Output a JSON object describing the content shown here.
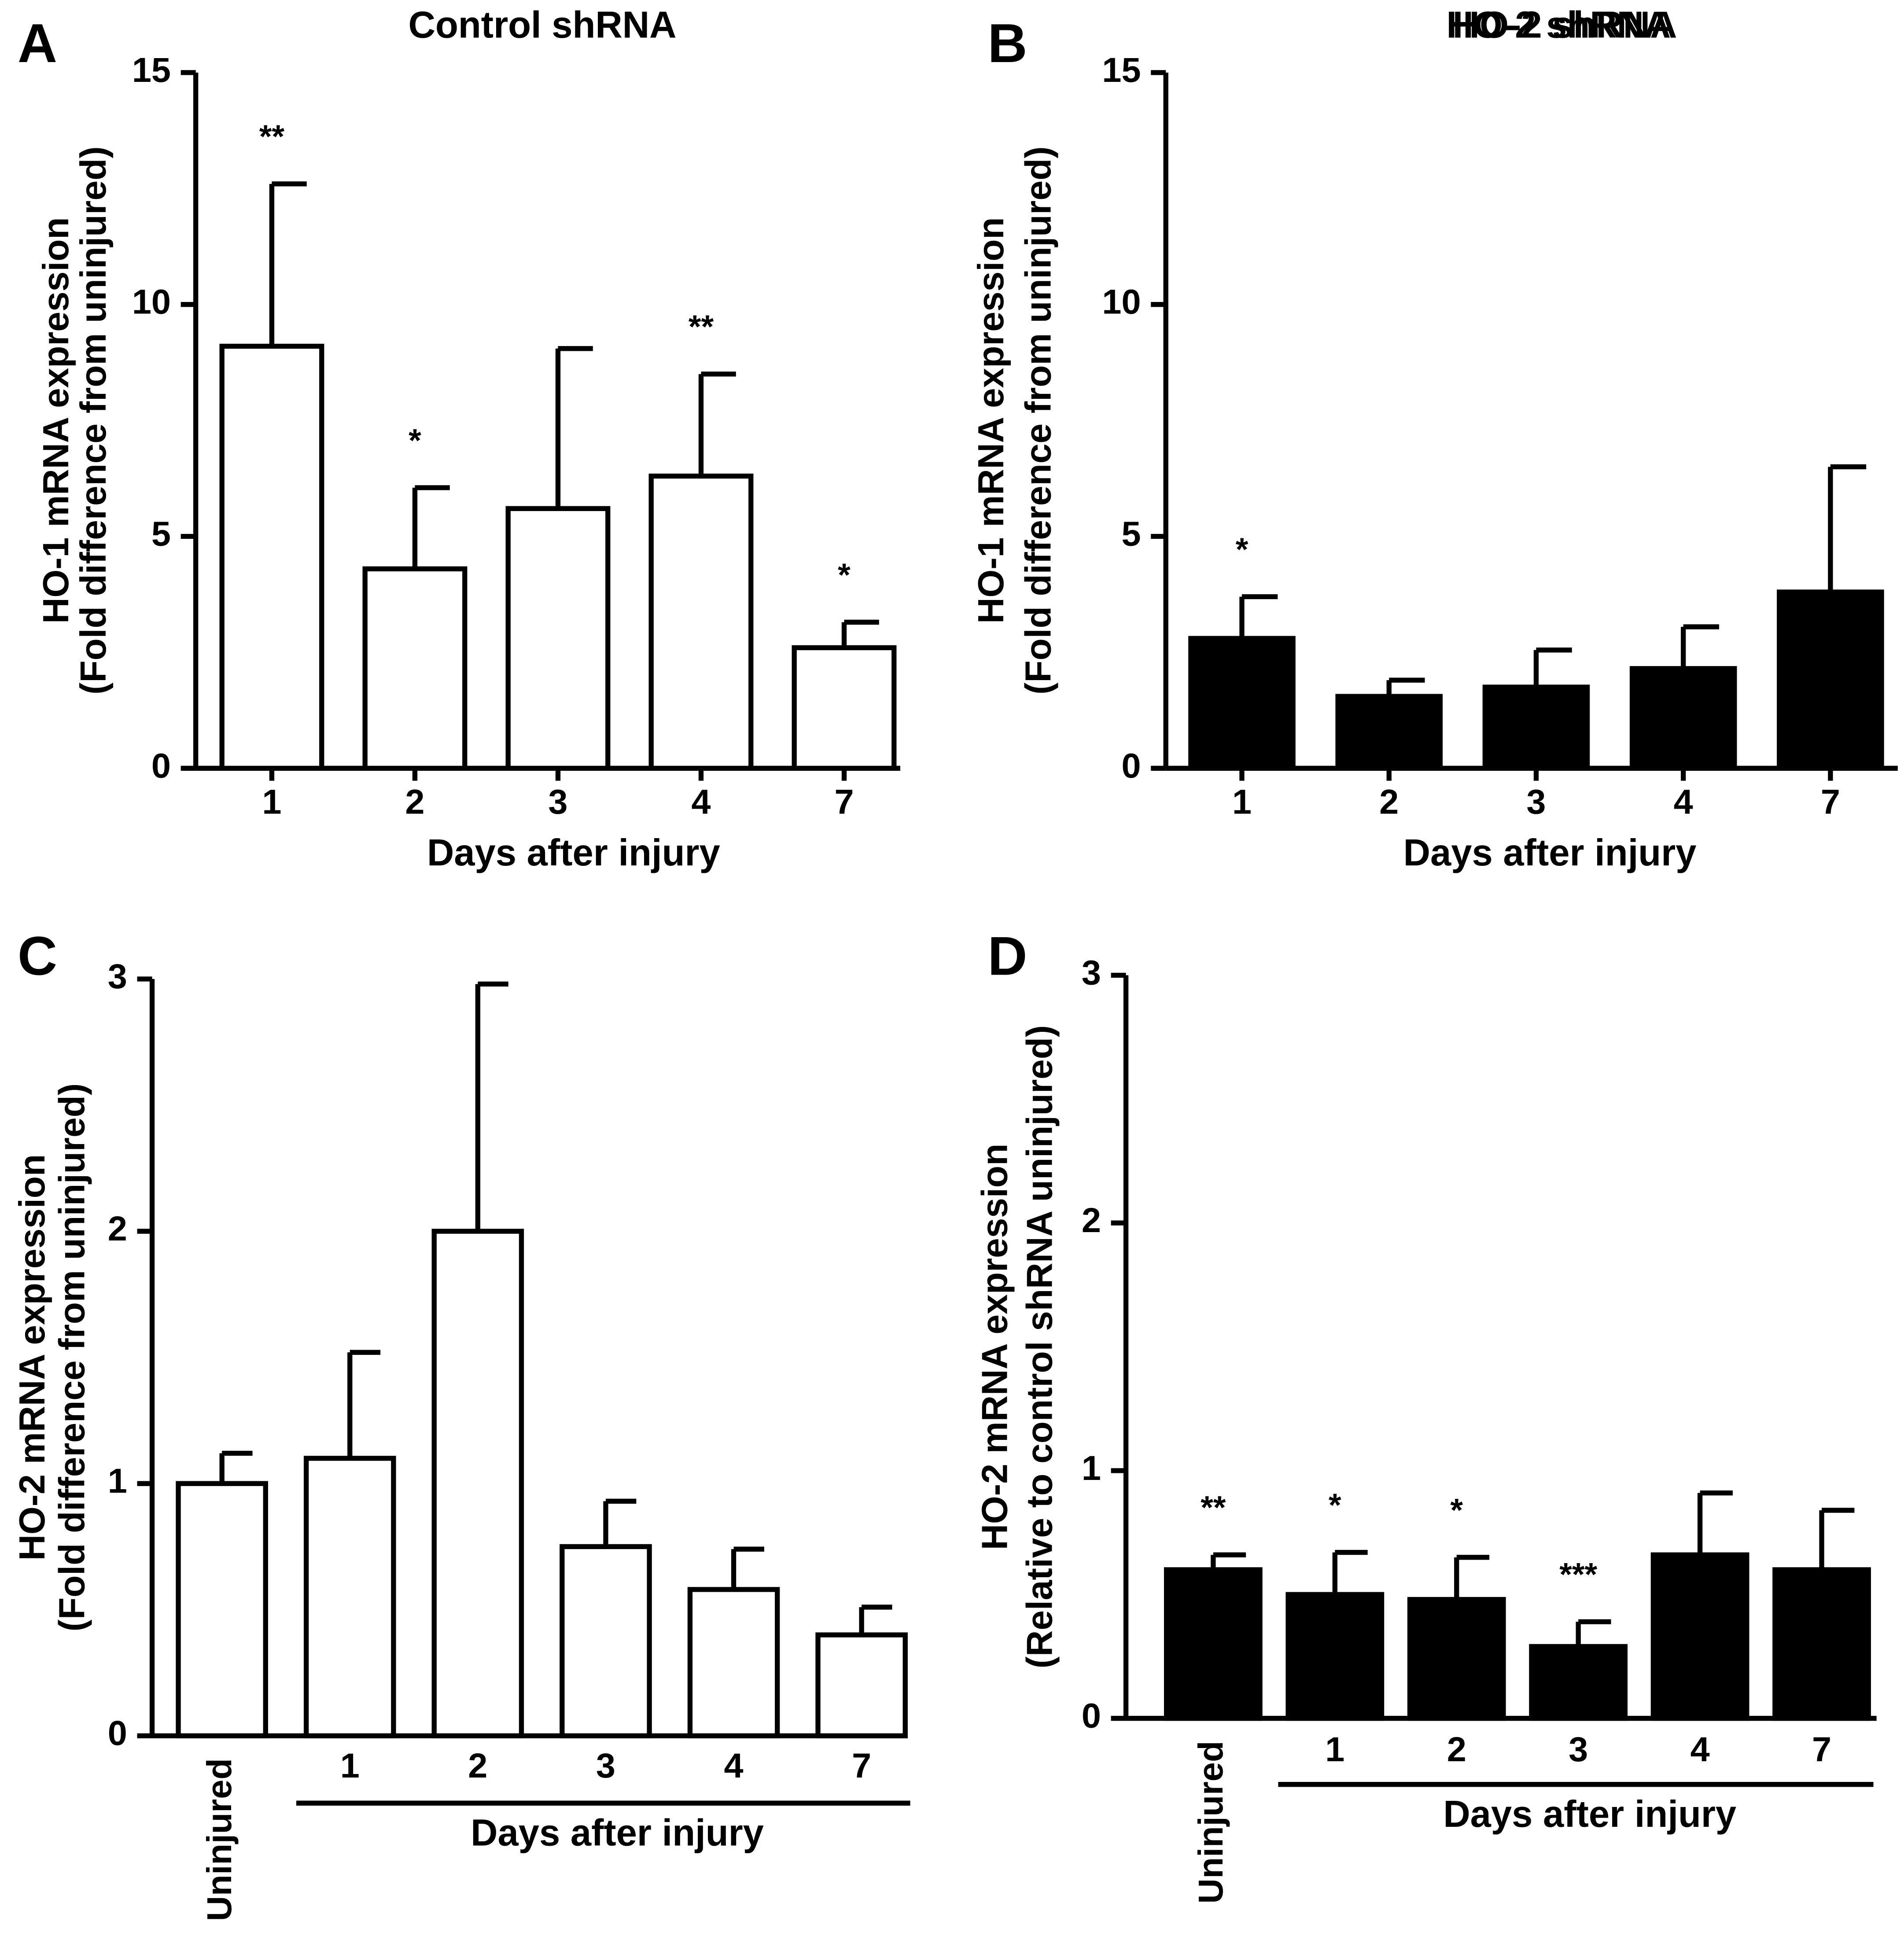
{
  "chart_data": [
    {
      "type": "bar",
      "panel": "A",
      "title": "Control shRNA",
      "ylabel": [
        "HO-1 mRNA expression",
        "(Fold difference from uninjured)"
      ],
      "xlabel": "Days after injury",
      "categories": [
        "1",
        "2",
        "3",
        "4",
        "7"
      ],
      "values": [
        9.1,
        4.3,
        5.6,
        6.3,
        2.6
      ],
      "errors": [
        3.5,
        1.75,
        3.45,
        2.2,
        0.55
      ],
      "significance": [
        "**",
        "*",
        null,
        "**",
        "*"
      ],
      "color": "#ffffff",
      "ylim": [
        0,
        15
      ],
      "yticks": [
        0,
        5,
        10,
        15
      ],
      "bracket": false
    },
    {
      "type": "bar",
      "panel": "B",
      "title": "HO-2 shRNA",
      "ylabel": [
        "HO-1 mRNA expression",
        "(Fold difference from uninjured)"
      ],
      "xlabel": "Days after injury",
      "categories": [
        "1",
        "2",
        "3",
        "4",
        "7"
      ],
      "values": [
        2.8,
        1.55,
        1.75,
        2.15,
        3.8
      ],
      "errors": [
        0.9,
        0.35,
        0.8,
        0.9,
        2.7
      ],
      "significance": [
        "*",
        null,
        null,
        null,
        null
      ],
      "color": "#000000",
      "ylim": [
        0,
        15
      ],
      "yticks": [
        0,
        5,
        10,
        15
      ],
      "bracket": false
    },
    {
      "type": "bar",
      "panel": "C",
      "title": "Control shRNA",
      "ylabel": [
        "HO-2 mRNA expression",
        "(Fold difference from uninjured)"
      ],
      "xlabel": "Days after injury",
      "categories": [
        "Uninjured",
        "1",
        "2",
        "3",
        "4",
        "7"
      ],
      "values": [
        1.0,
        1.1,
        2.0,
        0.75,
        0.58,
        0.4
      ],
      "errors": [
        0.12,
        0.42,
        0.98,
        0.18,
        0.16,
        0.11
      ],
      "significance": [
        null,
        null,
        null,
        null,
        null,
        null
      ],
      "color": "#ffffff",
      "ylim": [
        0,
        3
      ],
      "yticks": [
        0,
        1,
        2,
        3
      ],
      "bracket": true
    },
    {
      "type": "bar",
      "panel": "D",
      "title": "HO-2 shRNA",
      "ylabel": [
        "HO-2 mRNA expression",
        "(Relative to control shRNA uninjured)"
      ],
      "xlabel": "Days after injury",
      "categories": [
        "Uninjured",
        "1",
        "2",
        "3",
        "4",
        "7"
      ],
      "values": [
        0.6,
        0.5,
        0.48,
        0.29,
        0.66,
        0.6
      ],
      "errors": [
        0.06,
        0.17,
        0.17,
        0.1,
        0.25,
        0.24
      ],
      "significance": [
        "**",
        "*",
        "*",
        "***",
        null,
        null
      ],
      "color": "#000000",
      "ylim": [
        0,
        3
      ],
      "yticks": [
        0,
        1,
        2,
        3
      ],
      "bracket": true
    }
  ]
}
